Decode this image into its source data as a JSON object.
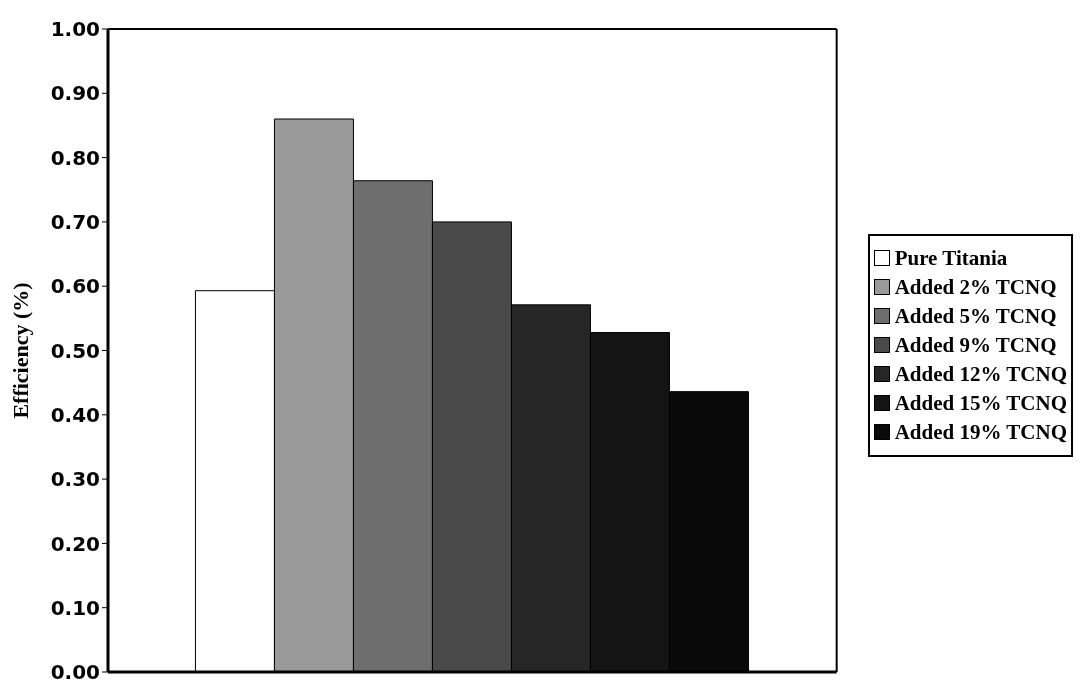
{
  "chart_data": {
    "type": "bar",
    "ylabel": "Efficiency (%)",
    "categories": [
      null
    ],
    "series": [
      {
        "name": "Pure Titania",
        "color": "#ffffff",
        "values": [
          0.593
        ]
      },
      {
        "name": "Added 2% TCNQ",
        "color": "#9a9a9a",
        "values": [
          0.86
        ]
      },
      {
        "name": "Added 5% TCNQ",
        "color": "#6e6e6e",
        "values": [
          0.764
        ]
      },
      {
        "name": "Added 9% TCNQ",
        "color": "#4a4a4a",
        "values": [
          0.7
        ]
      },
      {
        "name": "Added 12% TCNQ",
        "color": "#262626",
        "values": [
          0.571
        ]
      },
      {
        "name": "Added 15% TCNQ",
        "color": "#141414",
        "values": [
          0.528
        ]
      },
      {
        "name": "Added 19% TCNQ",
        "color": "#0a0a0a",
        "values": [
          0.436
        ]
      }
    ],
    "ylim": [
      0,
      1
    ],
    "yticks": [
      {
        "value": 0,
        "label": "0.00"
      },
      {
        "value": 0.1,
        "label": "0.10"
      },
      {
        "value": 0.2,
        "label": "0.20"
      },
      {
        "value": 0.3,
        "label": "0.30"
      },
      {
        "value": 0.4,
        "label": "0.40"
      },
      {
        "value": 0.5,
        "label": "0.50"
      },
      {
        "value": 0.6,
        "label": "0.60"
      },
      {
        "value": 0.7,
        "label": "0.70"
      },
      {
        "value": 0.8,
        "label": "0.80"
      },
      {
        "value": 0.9,
        "label": "0.90"
      },
      {
        "value": 1,
        "label": "1.00"
      }
    ],
    "legend": "right"
  }
}
